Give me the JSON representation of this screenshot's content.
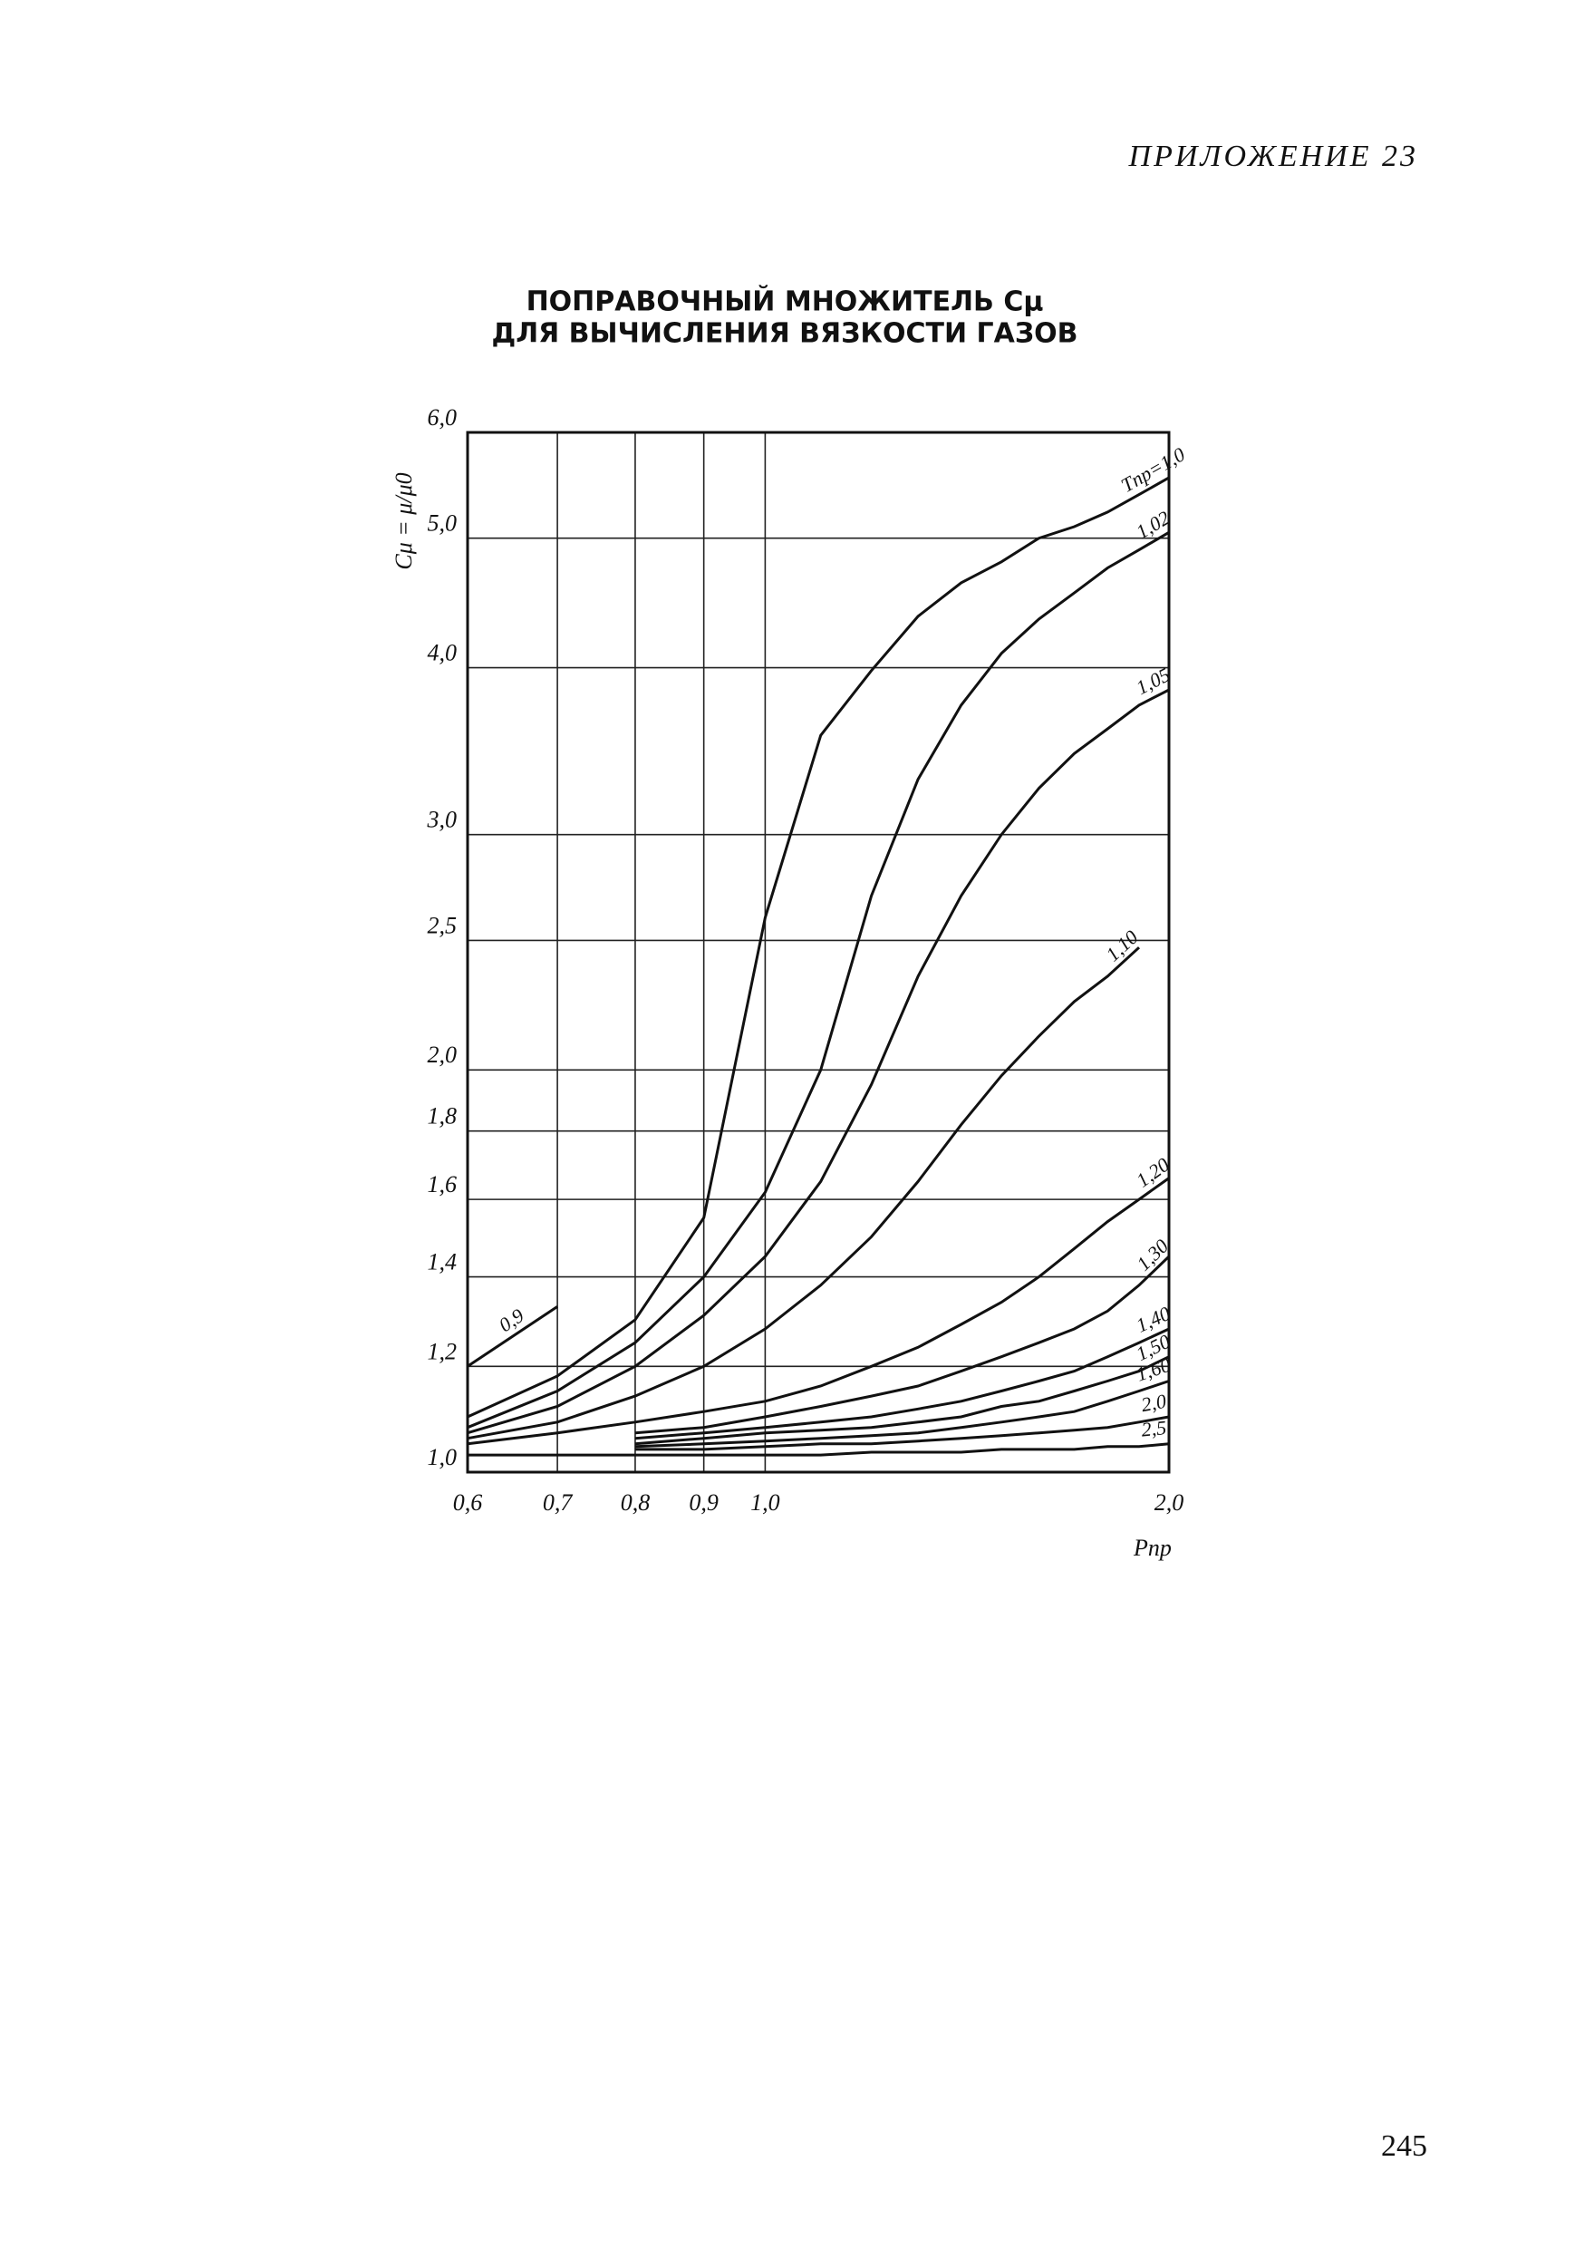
{
  "header": "ПРИЛОЖЕНИЕ 23",
  "chart_data": {
    "type": "line",
    "title": "ПОПРАВОЧНЫЙ МНОЖИТЕЛЬ Cμ",
    "subtitle": "ДЛЯ ВЫЧИСЛЕНИЯ ВЯЗКОСТИ ГАЗОВ",
    "y_label": "Cμ = μ/μ0",
    "x_label": "Pпр",
    "xscale": "log",
    "yscale": "log",
    "grid": true,
    "xlim": [
      0.6,
      2.0
    ],
    "ylim": [
      1.0,
      6.0
    ],
    "xticks": [
      {
        "value": 0.6,
        "label": "0,6"
      },
      {
        "value": 0.7,
        "label": "0,7"
      },
      {
        "value": 0.8,
        "label": "0,8"
      },
      {
        "value": 0.9,
        "label": "0,9"
      },
      {
        "value": 1.0,
        "label": "1,0"
      },
      {
        "value": 2.0,
        "label": "2,0"
      }
    ],
    "yticks": [
      {
        "value": 1.0,
        "label": "1,0"
      },
      {
        "value": 1.2,
        "label": "1,2"
      },
      {
        "value": 1.4,
        "label": "1,4"
      },
      {
        "value": 1.6,
        "label": "1,6"
      },
      {
        "value": 1.8,
        "label": "1,8"
      },
      {
        "value": 2.0,
        "label": "2,0"
      },
      {
        "value": 2.5,
        "label": "2,5"
      },
      {
        "value": 3.0,
        "label": "3,0"
      },
      {
        "value": 4.0,
        "label": "4,0"
      },
      {
        "value": 5.0,
        "label": "5,0"
      },
      {
        "value": 6.0,
        "label": "6,0"
      }
    ],
    "x": [
      0.6,
      0.7,
      0.8,
      0.9,
      1.0,
      1.1,
      1.2,
      1.3,
      1.4,
      1.5,
      1.6,
      1.7,
      1.8,
      1.9,
      2.0
    ],
    "series": [
      {
        "name": "Tпр=1,0",
        "color": "#111111",
        "values": [
          1.1,
          1.18,
          1.3,
          1.55,
          2.6,
          3.56,
          3.98,
          4.37,
          4.63,
          4.8,
          5.0,
          5.1,
          5.23,
          5.39,
          5.55
        ]
      },
      {
        "name": "1,02",
        "color": "#111111",
        "values": [
          1.08,
          1.15,
          1.25,
          1.4,
          1.62,
          2.0,
          2.7,
          3.3,
          3.75,
          4.1,
          4.35,
          4.55,
          4.75,
          4.9,
          5.05
        ]
      },
      {
        "name": "1,05",
        "color": "#111111",
        "values": [
          1.07,
          1.12,
          1.2,
          1.31,
          1.45,
          1.65,
          1.95,
          2.35,
          2.7,
          3.0,
          3.25,
          3.45,
          3.6,
          3.75,
          3.85
        ]
      },
      {
        "name": "1,10",
        "color": "#111111",
        "values": [
          1.06,
          1.09,
          1.14,
          1.2,
          1.28,
          1.38,
          1.5,
          1.65,
          1.82,
          1.98,
          2.12,
          2.25,
          2.35,
          2.47,
          null
        ]
      },
      {
        "name": "1,20",
        "color": "#111111",
        "values": [
          1.05,
          1.07,
          1.09,
          1.11,
          1.13,
          1.16,
          1.2,
          1.24,
          1.29,
          1.34,
          1.4,
          1.47,
          1.54,
          1.6,
          1.66
        ]
      },
      {
        "name": "1,30",
        "color": "#111111",
        "values": [
          null,
          null,
          1.07,
          1.08,
          1.1,
          1.12,
          1.14,
          1.16,
          1.19,
          1.22,
          1.25,
          1.28,
          1.32,
          1.38,
          1.45
        ]
      },
      {
        "name": "1,40",
        "color": "#111111",
        "values": [
          null,
          null,
          1.06,
          1.07,
          1.08,
          1.09,
          1.1,
          1.115,
          1.13,
          1.15,
          1.17,
          1.19,
          1.22,
          1.25,
          1.28
        ]
      },
      {
        "name": "1,50",
        "color": "#111111",
        "values": [
          null,
          null,
          1.05,
          1.06,
          1.07,
          1.075,
          1.08,
          1.09,
          1.1,
          1.12,
          1.13,
          1.15,
          1.17,
          1.19,
          1.22
        ]
      },
      {
        "name": "1,60",
        "color": "#111111",
        "values": [
          null,
          null,
          1.045,
          1.05,
          1.055,
          1.06,
          1.065,
          1.07,
          1.08,
          1.09,
          1.1,
          1.11,
          1.13,
          1.15,
          1.17
        ]
      },
      {
        "name": "2,0",
        "color": "#111111",
        "values": [
          null,
          null,
          1.04,
          1.04,
          1.045,
          1.05,
          1.05,
          1.055,
          1.06,
          1.065,
          1.07,
          1.075,
          1.08,
          1.09,
          1.1
        ]
      },
      {
        "name": "2,5",
        "color": "#111111",
        "values": [
          1.03,
          1.03,
          1.03,
          1.03,
          1.03,
          1.03,
          1.035,
          1.035,
          1.035,
          1.04,
          1.04,
          1.04,
          1.045,
          1.045,
          1.05
        ]
      },
      {
        "name": "0,9",
        "color": "#111111",
        "values": [
          1.2,
          1.33,
          null,
          null,
          null,
          null,
          null,
          null,
          null,
          null,
          null,
          null,
          null,
          null,
          null
        ]
      }
    ]
  },
  "page_number": "245"
}
